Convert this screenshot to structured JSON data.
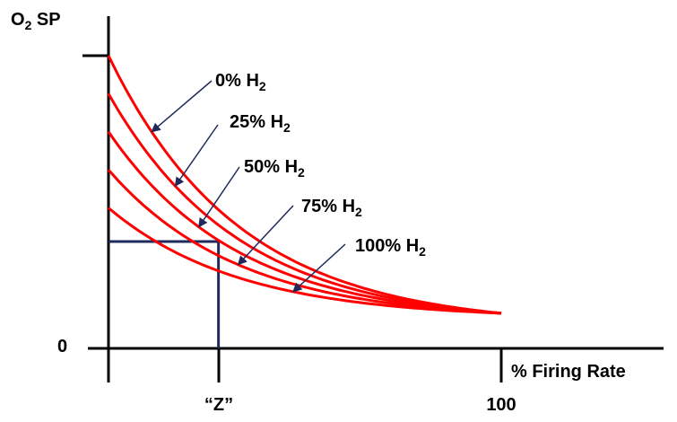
{
  "chart_data": {
    "type": "line",
    "ylabel": "O",
    "ylabel_sub": "2",
    "ylabel_rest": " SP",
    "xlabel": "% Firing Rate",
    "y_zero_label": "0",
    "x_marker_label": "“Z”",
    "x_max_label": "100",
    "xlim": [
      0,
      100
    ],
    "ylim": [
      0,
      1
    ],
    "x_marker": 28,
    "guide": {
      "x": 28,
      "y": 0.365
    },
    "curve_decay": 3.0,
    "curve_end": {
      "x": 100,
      "y": 0.12
    },
    "series": [
      {
        "name": "0% H",
        "name_sub": "2",
        "y_start": 1.0
      },
      {
        "name": "25% H",
        "name_sub": "2",
        "y_start": 0.87
      },
      {
        "name": "50% H",
        "name_sub": "2",
        "y_start": 0.74
      },
      {
        "name": "75% H",
        "name_sub": "2",
        "y_start": 0.61
      },
      {
        "name": "100% H",
        "name_sub": "2",
        "y_start": 0.48
      }
    ],
    "colors": {
      "curve": "#ff0000",
      "annotation_arrow": "#1f2a5c",
      "guide_line": "#1f2a5c",
      "axis": "#000000"
    }
  }
}
